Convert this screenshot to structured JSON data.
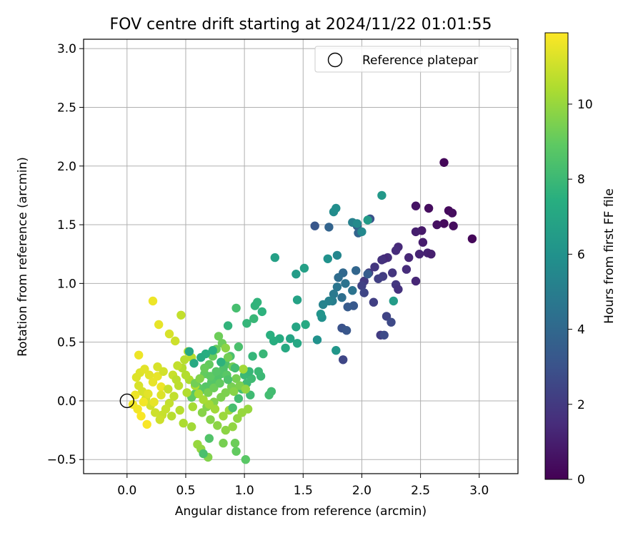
{
  "chart_data": {
    "type": "scatter",
    "title": "FOV centre drift starting at 2024/11/22 01:01:55",
    "xlabel": "Angular distance from reference (arcmin)",
    "ylabel": "Rotation from reference (arcmin)",
    "xlim": [
      -0.37,
      3.33
    ],
    "ylim": [
      -0.62,
      3.08
    ],
    "xticks": [
      "0.0",
      "0.5",
      "1.0",
      "1.5",
      "2.0",
      "2.5",
      "3.0"
    ],
    "yticks": [
      "−0.5",
      "0.0",
      "0.5",
      "1.0",
      "1.5",
      "2.0",
      "2.5",
      "3.0"
    ],
    "grid": true,
    "legend": {
      "position": "top-right",
      "entries": [
        "Reference platepar"
      ]
    },
    "reference_point": {
      "x": 0.0,
      "y": 0.0,
      "marker": "open-circle"
    },
    "colorbar": {
      "label": "Hours from first FF file",
      "colormap": "viridis",
      "range": [
        0,
        11.9
      ],
      "ticks": [
        "0",
        "2",
        "4",
        "6",
        "8",
        "10"
      ]
    },
    "series": [
      {
        "points": [
          [
            2.7,
            2.03,
            0.2
          ],
          [
            2.74,
            1.62,
            0.3
          ],
          [
            2.77,
            1.6,
            0.4
          ],
          [
            2.7,
            1.51,
            0.3
          ],
          [
            2.78,
            1.49,
            0.4
          ],
          [
            2.94,
            1.38,
            0.2
          ],
          [
            2.64,
            1.5,
            0.5
          ],
          [
            2.57,
            1.64,
            0.4
          ],
          [
            2.46,
            1.66,
            0.6
          ],
          [
            2.51,
            1.45,
            0.8
          ],
          [
            2.46,
            1.44,
            1.0
          ],
          [
            2.52,
            1.35,
            0.9
          ],
          [
            2.56,
            1.26,
            1.1
          ],
          [
            2.59,
            1.25,
            1.0
          ],
          [
            2.49,
            1.25,
            1.2
          ],
          [
            2.4,
            1.22,
            1.3
          ],
          [
            2.31,
            1.31,
            1.4
          ],
          [
            2.29,
            1.28,
            1.5
          ],
          [
            2.22,
            1.22,
            1.6
          ],
          [
            2.19,
            1.21,
            1.4
          ],
          [
            2.17,
            1.2,
            1.7
          ],
          [
            2.38,
            1.12,
            1.5
          ],
          [
            2.26,
            1.09,
            1.8
          ],
          [
            2.11,
            1.14,
            1.9
          ],
          [
            2.06,
            1.09,
            2.0
          ],
          [
            2.18,
            1.06,
            2.1
          ],
          [
            2.14,
            1.04,
            2.2
          ],
          [
            2.02,
            1.02,
            2.0
          ],
          [
            2.0,
            0.98,
            2.3
          ],
          [
            2.29,
            0.99,
            1.9
          ],
          [
            2.31,
            0.95,
            1.7
          ],
          [
            2.46,
            1.02,
            1.3
          ],
          [
            2.02,
            0.92,
            2.5
          ],
          [
            2.1,
            0.84,
            2.2
          ],
          [
            2.21,
            0.72,
            2.4
          ],
          [
            2.25,
            0.67,
            2.6
          ],
          [
            2.16,
            0.56,
            2.1
          ],
          [
            2.19,
            0.56,
            2.7
          ],
          [
            1.83,
            0.62,
            3.0
          ],
          [
            1.87,
            0.6,
            3.2
          ],
          [
            1.84,
            0.35,
            2.5
          ],
          [
            1.93,
            0.81,
            3.3
          ],
          [
            1.88,
            0.8,
            3.4
          ],
          [
            2.07,
            1.55,
            3.0
          ],
          [
            1.96,
            1.49,
            3.6
          ],
          [
            1.72,
            1.48,
            3.8
          ],
          [
            1.6,
            1.49,
            3.2
          ],
          [
            1.97,
            1.43,
            3.8
          ],
          [
            2.05,
            1.08,
            3.5
          ],
          [
            1.95,
            1.11,
            3.9
          ],
          [
            1.84,
            1.09,
            4.0
          ],
          [
            1.8,
            1.05,
            4.2
          ],
          [
            1.86,
            1.0,
            4.5
          ],
          [
            1.79,
            0.97,
            4.6
          ],
          [
            1.76,
            0.91,
            4.8
          ],
          [
            1.83,
            0.88,
            4.3
          ],
          [
            1.92,
            0.94,
            4.5
          ],
          [
            1.75,
            0.85,
            5.0
          ],
          [
            1.72,
            0.85,
            5.2
          ],
          [
            1.67,
            0.82,
            5.3
          ],
          [
            1.79,
            1.24,
            5.4
          ],
          [
            1.92,
            1.52,
            5.2
          ],
          [
            1.96,
            1.51,
            5.6
          ],
          [
            1.76,
            1.61,
            5.7
          ],
          [
            1.78,
            1.64,
            5.8
          ],
          [
            2.0,
            1.44,
            5.5
          ],
          [
            1.71,
            1.21,
            6.0
          ],
          [
            1.66,
            0.71,
            5.9
          ],
          [
            1.62,
            0.52,
            6.0
          ],
          [
            1.65,
            0.74,
            6.1
          ],
          [
            1.78,
            0.43,
            6.2
          ],
          [
            2.17,
            1.75,
            6.3
          ],
          [
            2.05,
            1.54,
            6.4
          ],
          [
            2.27,
            0.85,
            6.5
          ],
          [
            1.44,
            1.08,
            6.5
          ],
          [
            1.51,
            1.13,
            6.7
          ],
          [
            1.26,
            1.22,
            6.7
          ],
          [
            1.45,
            0.86,
            6.8
          ],
          [
            1.39,
            0.53,
            6.9
          ],
          [
            1.44,
            0.63,
            7.0
          ],
          [
            1.45,
            0.49,
            7.1
          ],
          [
            1.35,
            0.45,
            7.2
          ],
          [
            1.52,
            0.65,
            7.2
          ],
          [
            1.3,
            0.53,
            7.3
          ],
          [
            1.25,
            0.51,
            7.4
          ],
          [
            1.22,
            0.56,
            7.5
          ],
          [
            1.15,
            0.76,
            7.6
          ],
          [
            1.09,
            0.81,
            7.7
          ],
          [
            1.11,
            0.84,
            7.7
          ],
          [
            1.02,
            0.66,
            7.8
          ],
          [
            1.08,
            0.7,
            7.9
          ],
          [
            1.16,
            0.4,
            7.9
          ],
          [
            1.14,
            0.21,
            8.0
          ],
          [
            1.12,
            0.25,
            8.0
          ],
          [
            1.06,
            0.19,
            8.1
          ],
          [
            1.02,
            0.15,
            8.1
          ],
          [
            1.21,
            0.05,
            8.2
          ],
          [
            1.23,
            0.08,
            8.2
          ],
          [
            0.98,
            0.1,
            8.3
          ],
          [
            0.93,
            0.79,
            8.3
          ],
          [
            0.95,
            0.46,
            8.4
          ],
          [
            0.88,
            0.38,
            8.4
          ],
          [
            0.84,
            0.31,
            8.5
          ],
          [
            0.82,
            0.27,
            8.5
          ],
          [
            0.8,
            0.23,
            8.6
          ],
          [
            0.77,
            0.2,
            8.6
          ],
          [
            0.72,
            0.16,
            8.7
          ],
          [
            0.67,
            0.12,
            8.7
          ],
          [
            0.63,
            0.09,
            8.8
          ],
          [
            0.58,
            0.06,
            8.8
          ],
          [
            0.55,
            0.03,
            8.9
          ],
          [
            0.6,
            0.12,
            8.9
          ],
          [
            0.66,
            0.23,
            9.0
          ],
          [
            0.7,
            0.31,
            9.0
          ],
          [
            0.73,
            0.38,
            9.1
          ],
          [
            0.76,
            0.44,
            9.1
          ],
          [
            0.78,
            0.55,
            9.2
          ],
          [
            0.81,
            0.49,
            9.2
          ],
          [
            0.86,
            0.37,
            9.3
          ],
          [
            0.9,
            0.29,
            9.3
          ],
          [
            0.93,
            0.19,
            9.4
          ],
          [
            0.89,
            0.12,
            9.4
          ],
          [
            0.84,
            0.07,
            9.5
          ],
          [
            0.8,
            0.03,
            9.5
          ],
          [
            0.74,
            -0.01,
            9.6
          ],
          [
            0.68,
            -0.05,
            9.6
          ],
          [
            0.64,
            -0.1,
            9.7
          ],
          [
            0.71,
            -0.16,
            9.7
          ],
          [
            0.77,
            -0.21,
            9.8
          ],
          [
            0.84,
            -0.25,
            9.8
          ],
          [
            0.9,
            -0.22,
            9.9
          ],
          [
            0.94,
            -0.15,
            9.9
          ],
          [
            0.98,
            -0.1,
            10.0
          ],
          [
            1.03,
            -0.07,
            10.0
          ],
          [
            0.87,
            -0.08,
            10.1
          ],
          [
            0.82,
            -0.13,
            10.1
          ],
          [
            0.75,
            -0.07,
            10.2
          ],
          [
            0.7,
            -0.03,
            10.2
          ],
          [
            0.65,
            0.01,
            10.3
          ],
          [
            0.61,
            0.06,
            10.3
          ],
          [
            0.58,
            0.13,
            10.4
          ],
          [
            0.53,
            0.18,
            10.4
          ],
          [
            0.5,
            0.22,
            10.5
          ],
          [
            0.47,
            0.28,
            10.5
          ],
          [
            0.49,
            0.35,
            10.6
          ],
          [
            0.55,
            0.37,
            10.6
          ],
          [
            0.52,
            0.42,
            10.7
          ],
          [
            0.44,
            0.13,
            10.7
          ],
          [
            0.4,
            0.04,
            10.8
          ],
          [
            0.36,
            -0.02,
            10.8
          ],
          [
            0.33,
            -0.07,
            10.9
          ],
          [
            0.3,
            -0.12,
            10.9
          ],
          [
            0.28,
            -0.16,
            11.0
          ],
          [
            0.24,
            -0.1,
            11.0
          ],
          [
            0.2,
            -0.04,
            11.1
          ],
          [
            0.16,
            0.02,
            11.1
          ],
          [
            0.13,
            0.08,
            11.2
          ],
          [
            0.1,
            0.13,
            11.2
          ],
          [
            0.08,
            0.2,
            11.3
          ],
          [
            0.11,
            0.24,
            11.3
          ],
          [
            0.15,
            0.27,
            11.4
          ],
          [
            0.19,
            0.22,
            11.4
          ],
          [
            0.22,
            0.16,
            11.5
          ],
          [
            0.26,
            0.21,
            11.5
          ],
          [
            0.29,
            0.12,
            11.6
          ],
          [
            0.07,
            0.05,
            11.6
          ],
          [
            0.05,
            -0.03,
            11.7
          ],
          [
            0.09,
            -0.07,
            11.7
          ],
          [
            0.12,
            -0.13,
            11.8
          ],
          [
            0.17,
            -0.2,
            11.8
          ],
          [
            0.22,
            0.85,
            11.6
          ],
          [
            0.27,
            0.65,
            11.5
          ],
          [
            0.36,
            0.57,
            11.2
          ],
          [
            0.41,
            0.51,
            11.0
          ],
          [
            0.46,
            0.73,
            10.8
          ],
          [
            0.38,
            -0.13,
            10.6
          ],
          [
            0.48,
            -0.19,
            10.4
          ],
          [
            0.55,
            -0.22,
            10.2
          ],
          [
            0.6,
            -0.37,
            10.0
          ],
          [
            0.63,
            -0.41,
            9.9
          ],
          [
            0.69,
            -0.48,
            9.6
          ],
          [
            0.82,
            -0.36,
            9.4
          ],
          [
            0.92,
            -0.36,
            9.2
          ],
          [
            0.93,
            -0.43,
            9.0
          ],
          [
            1.01,
            -0.5,
            8.8
          ],
          [
            0.7,
            -0.32,
            8.6
          ],
          [
            0.65,
            -0.45,
            8.4
          ],
          [
            0.9,
            -0.06,
            8.3
          ],
          [
            0.95,
            0.02,
            8.2
          ],
          [
            1.05,
            0.05,
            8.1
          ],
          [
            1.0,
            0.22,
            8.0
          ],
          [
            1.04,
            0.25,
            7.9
          ],
          [
            1.07,
            0.38,
            7.8
          ],
          [
            0.86,
            0.64,
            7.7
          ],
          [
            0.8,
            0.33,
            7.6
          ],
          [
            0.73,
            0.43,
            7.5
          ],
          [
            0.67,
            0.4,
            7.4
          ],
          [
            0.63,
            0.37,
            7.3
          ],
          [
            0.57,
            0.32,
            7.2
          ],
          [
            0.53,
            0.42,
            7.1
          ],
          [
            0.58,
            0.15,
            9.3
          ],
          [
            0.62,
            0.19,
            9.6
          ],
          [
            0.69,
            0.07,
            9.4
          ],
          [
            0.74,
            0.11,
            9.2
          ],
          [
            0.79,
            0.15,
            9.0
          ],
          [
            0.85,
            0.22,
            8.8
          ],
          [
            0.91,
            0.08,
            9.7
          ],
          [
            0.96,
            0.13,
            9.5
          ],
          [
            1.01,
            0.1,
            9.9
          ],
          [
            0.84,
            0.45,
            9.8
          ],
          [
            0.99,
            0.27,
            10.2
          ],
          [
            0.26,
            0.29,
            11.2
          ],
          [
            0.31,
            0.25,
            11.1
          ],
          [
            0.39,
            0.22,
            10.9
          ],
          [
            0.42,
            0.18,
            10.7
          ],
          [
            0.35,
            0.1,
            10.9
          ],
          [
            0.29,
            0.05,
            11.3
          ],
          [
            0.23,
            -0.01,
            11.5
          ],
          [
            0.18,
            0.06,
            11.4
          ],
          [
            0.14,
            -0.01,
            11.7
          ],
          [
            0.1,
            0.39,
            11.6
          ],
          [
            0.43,
            0.3,
            10.8
          ],
          [
            0.51,
            0.07,
            10.5
          ],
          [
            0.56,
            -0.05,
            10.3
          ],
          [
            0.45,
            -0.08,
            10.6
          ],
          [
            0.66,
            0.28,
            9.1
          ],
          [
            0.71,
            0.21,
            8.9
          ],
          [
            0.76,
            0.25,
            8.7
          ],
          [
            0.86,
            0.18,
            8.5
          ],
          [
            0.92,
            0.28,
            8.2
          ]
        ]
      }
    ]
  }
}
